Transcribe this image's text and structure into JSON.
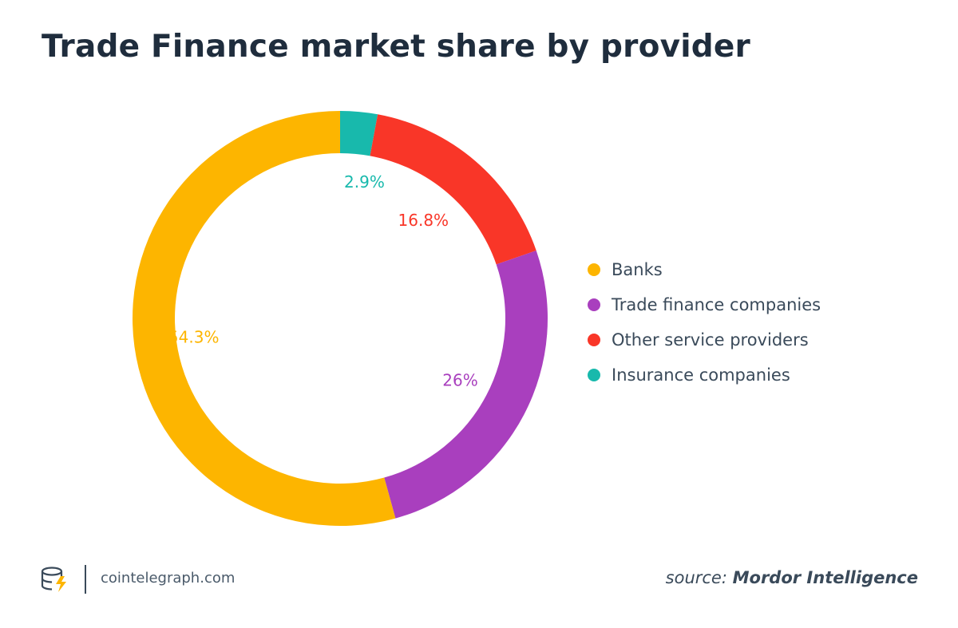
{
  "title": "Trade Finance market share by provider",
  "chart_data": {
    "type": "pie",
    "donut": true,
    "title": "Trade Finance market share by provider",
    "legend_position": "right",
    "categories": [
      "Banks",
      "Trade finance companies",
      "Other service providers",
      "Insurance companies"
    ],
    "values": [
      54.3,
      26,
      16.8,
      2.9
    ],
    "labels": [
      "54.3%",
      "26%",
      "16.8%",
      "2.9%"
    ],
    "colors": [
      "#FDB500",
      "#A93FBE",
      "#F93628",
      "#18B9AC"
    ]
  },
  "footer": {
    "site": "cointelegraph.com",
    "source_prefix": "source:",
    "source_name": "Mordor Intelligence"
  },
  "icons": {
    "logo": "cointelegraph-logo-icon"
  }
}
